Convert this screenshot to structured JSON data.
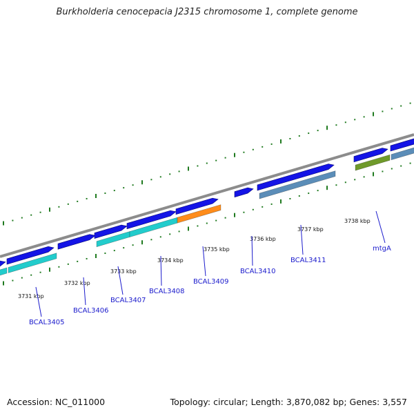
{
  "header": {
    "title": "Burkholderia cenocepacia J2315 chromosome 1, complete genome"
  },
  "footer": {
    "accession": "Accession: NC_011000",
    "summary": "Topology: circular; Length: 3,870,082 bp; Genes: 3,557"
  },
  "map": {
    "colors": {
      "backbone": "#8c8c8c",
      "gene_blue": "#1414e6",
      "cds_cyan": "#22cccc",
      "cds_orange": "#ff8c1a",
      "cds_steel": "#5b8db8",
      "cds_olive": "#6f9a2a",
      "tick": "#1f7a1f",
      "label": "#1a1acc"
    },
    "scale_labels": [
      "3731 kbp",
      "3732 kbp",
      "3733 kbp",
      "3734 kbp",
      "3735 kbp",
      "3736 kbp",
      "3737 kbp",
      "3738 kbp"
    ],
    "gene_labels": [
      "BCAL3405",
      "BCAL3406",
      "BCAL3407",
      "BCAL3408",
      "BCAL3409",
      "BCAL3410",
      "BCAL3411",
      "mtgA"
    ]
  }
}
